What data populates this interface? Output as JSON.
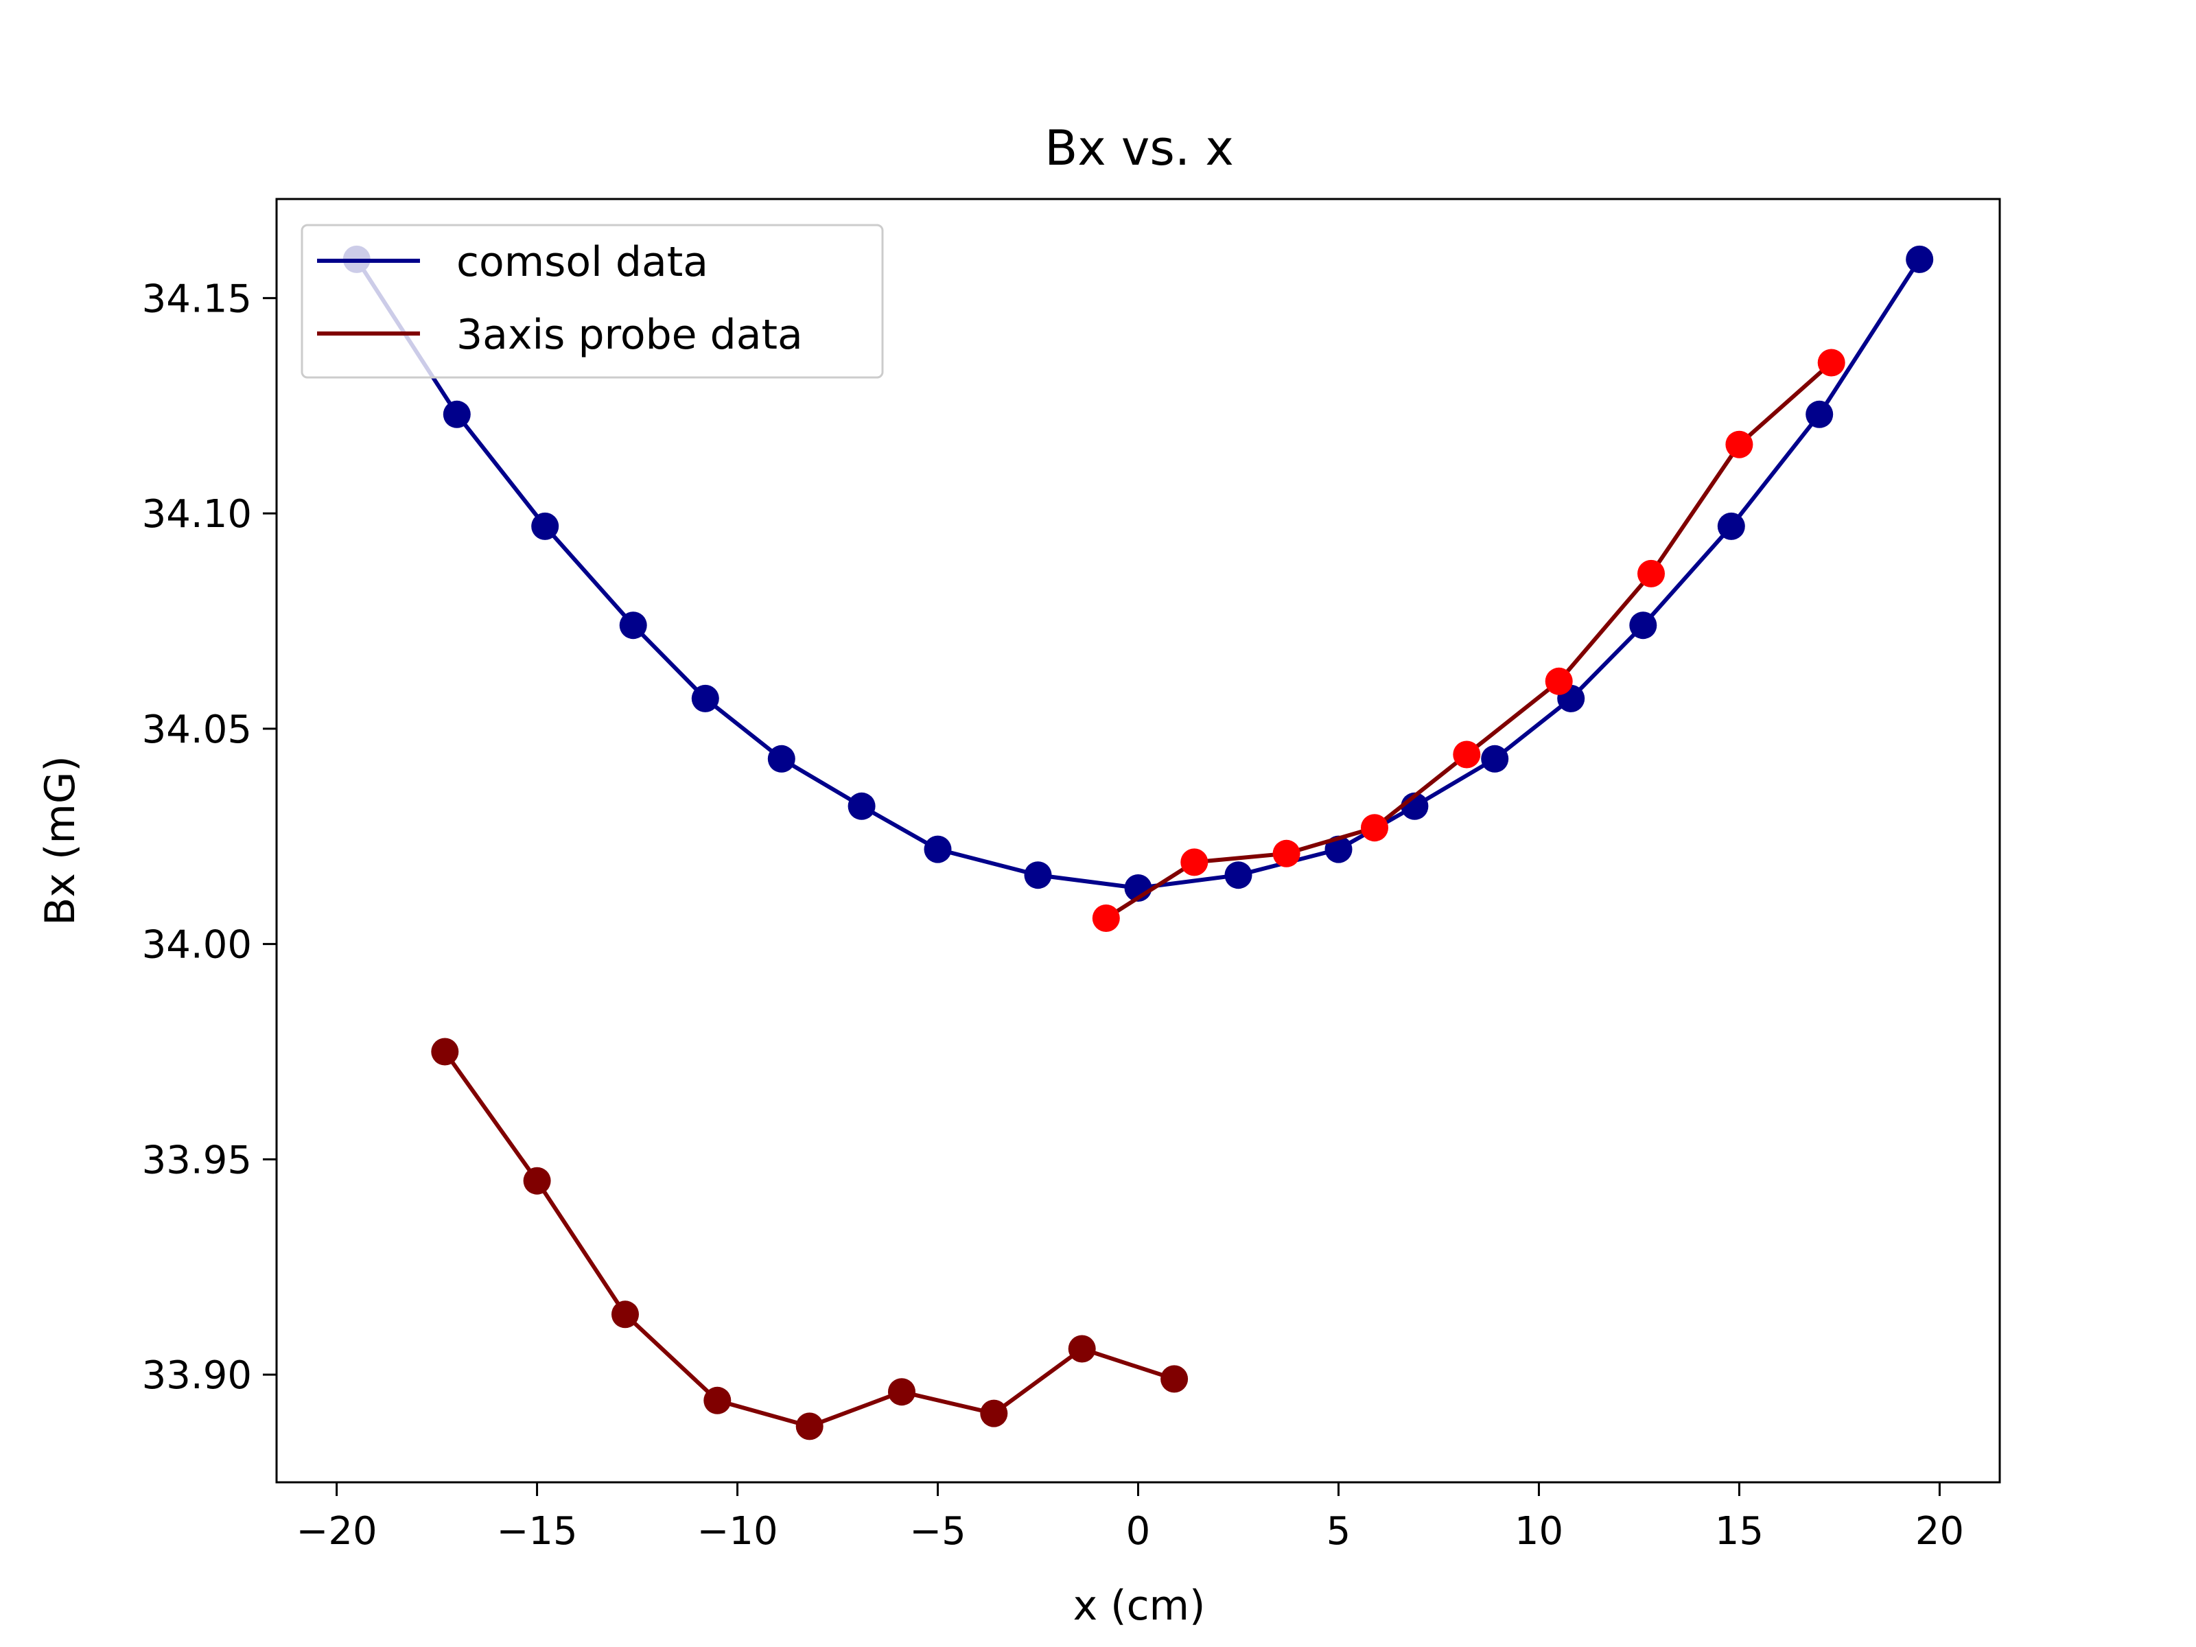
{
  "chart_data": {
    "type": "line",
    "title": "Bx vs. x",
    "xlabel": "x (cm)",
    "ylabel": "Bx (mG)",
    "xlim": [
      -21.5,
      21.5
    ],
    "ylim": [
      33.875,
      34.173
    ],
    "xticks": [
      -20,
      -15,
      -10,
      -5,
      0,
      5,
      10,
      15,
      20
    ],
    "xtick_labels": [
      "−20",
      "−15",
      "−10",
      "−5",
      "0",
      "5",
      "10",
      "15",
      "20"
    ],
    "yticks": [
      33.9,
      33.95,
      34.0,
      34.05,
      34.1,
      34.15
    ],
    "ytick_labels": [
      "33.90",
      "33.95",
      "34.00",
      "34.05",
      "34.10",
      "34.15"
    ],
    "grid": false,
    "legend_position": "upper-left",
    "legend": [
      {
        "label": "comsol data",
        "color": "#00008b"
      },
      {
        "label": "3axis probe data",
        "color": "#800000"
      }
    ],
    "series": [
      {
        "name": "comsol data",
        "line_color": "#00008b",
        "marker_color": "#00008b",
        "x": [
          -19.5,
          -17.0,
          -14.8,
          -12.6,
          -10.8,
          -8.9,
          -6.9,
          -5.0,
          -2.5,
          0.0,
          2.5,
          5.0,
          6.9,
          8.9,
          10.8,
          12.6,
          14.8,
          17.0,
          19.5
        ],
        "y": [
          34.159,
          34.123,
          34.097,
          34.074,
          34.057,
          34.043,
          34.032,
          34.022,
          34.016,
          34.013,
          34.016,
          34.022,
          34.032,
          34.043,
          34.057,
          34.074,
          34.097,
          34.123,
          34.159
        ]
      },
      {
        "name": "3axis probe data",
        "line_color": "#800000",
        "marker_color": "#ff0000",
        "x": [
          -0.8,
          1.4,
          3.7,
          5.9,
          8.2,
          10.5,
          12.8,
          15.0,
          17.3
        ],
        "y": [
          34.006,
          34.019,
          34.021,
          34.027,
          34.044,
          34.061,
          34.086,
          34.116,
          34.135
        ]
      },
      {
        "line_color": "#800000",
        "marker_color": "#800000",
        "x": [
          -17.3,
          -15.0,
          -12.8,
          -10.5,
          -8.2,
          -5.9,
          -3.6,
          -1.4,
          0.9
        ],
        "y": [
          33.975,
          33.945,
          33.914,
          33.894,
          33.888,
          33.896,
          33.891,
          33.906,
          33.899
        ]
      }
    ]
  }
}
